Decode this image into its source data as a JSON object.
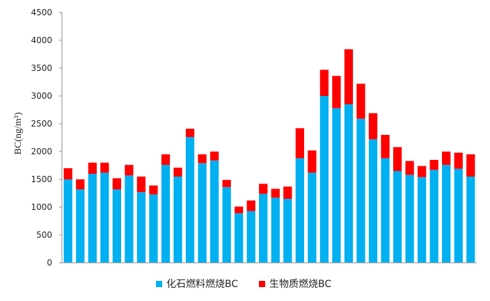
{
  "chart_data": {
    "type": "bar",
    "stacked": true,
    "ylabel": "BC(ng/m³)",
    "ylim": [
      0,
      4500
    ],
    "yticks": [
      0,
      500,
      1000,
      1500,
      2000,
      2500,
      3000,
      3500,
      4000,
      4500
    ],
    "legend_position": "bottom",
    "series": [
      {
        "name": "化石燃料燃烧BC",
        "color": "#00B0F0",
        "values": [
          1500,
          1320,
          1600,
          1620,
          1320,
          1570,
          1270,
          1230,
          1760,
          1550,
          2260,
          1790,
          1840,
          1360,
          890,
          930,
          1240,
          1170,
          1150,
          1880,
          1620,
          3000,
          2780,
          2850,
          2590,
          2220,
          1880,
          1650,
          1580,
          1540,
          1670,
          1760,
          1690,
          1550
        ]
      },
      {
        "name": "生物质燃烧BC",
        "color": "#FF0000",
        "values": [
          200,
          180,
          200,
          180,
          200,
          190,
          280,
          160,
          190,
          160,
          150,
          160,
          160,
          130,
          120,
          190,
          180,
          160,
          220,
          540,
          400,
          470,
          580,
          990,
          630,
          470,
          420,
          430,
          250,
          200,
          180,
          240,
          290,
          400
        ]
      }
    ]
  }
}
